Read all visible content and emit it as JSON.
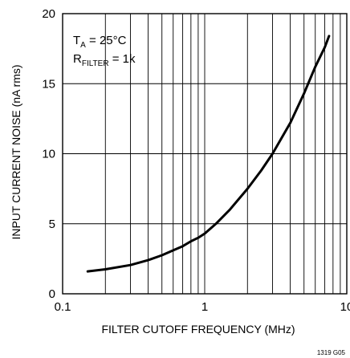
{
  "chart_data": {
    "type": "line",
    "xlabel": "FILTER CUTOFF FREQUENCY (MHz)",
    "ylabel": "INPUT CURRENT NOISE (nA rms)",
    "x_scale": "log",
    "xlim": [
      0.1,
      10
    ],
    "ylim": [
      0,
      20
    ],
    "x_tick_labels": [
      "0.1",
      "1",
      "10"
    ],
    "y_tick_labels": [
      "0",
      "5",
      "10",
      "15",
      "20"
    ],
    "grid": true,
    "annotations": [
      {
        "main": "T",
        "sub": "A",
        "rest": " = 25°C"
      },
      {
        "main": "R",
        "sub": "FILTER",
        "rest": " = 1k"
      }
    ],
    "figure_id": "1319 G05",
    "series": [
      {
        "x": [
          0.15,
          0.2,
          0.3,
          0.4,
          0.5,
          0.6,
          0.7,
          0.8,
          0.9,
          1.0,
          1.2,
          1.5,
          2.0,
          2.5,
          3.0,
          4.0,
          5.0,
          6.0,
          7.0,
          7.5
        ],
        "y": [
          1.6,
          1.75,
          2.05,
          2.4,
          2.75,
          3.1,
          3.4,
          3.75,
          4.0,
          4.3,
          5.0,
          6.0,
          7.5,
          8.8,
          10.0,
          12.2,
          14.3,
          16.2,
          17.6,
          18.4
        ]
      }
    ]
  }
}
